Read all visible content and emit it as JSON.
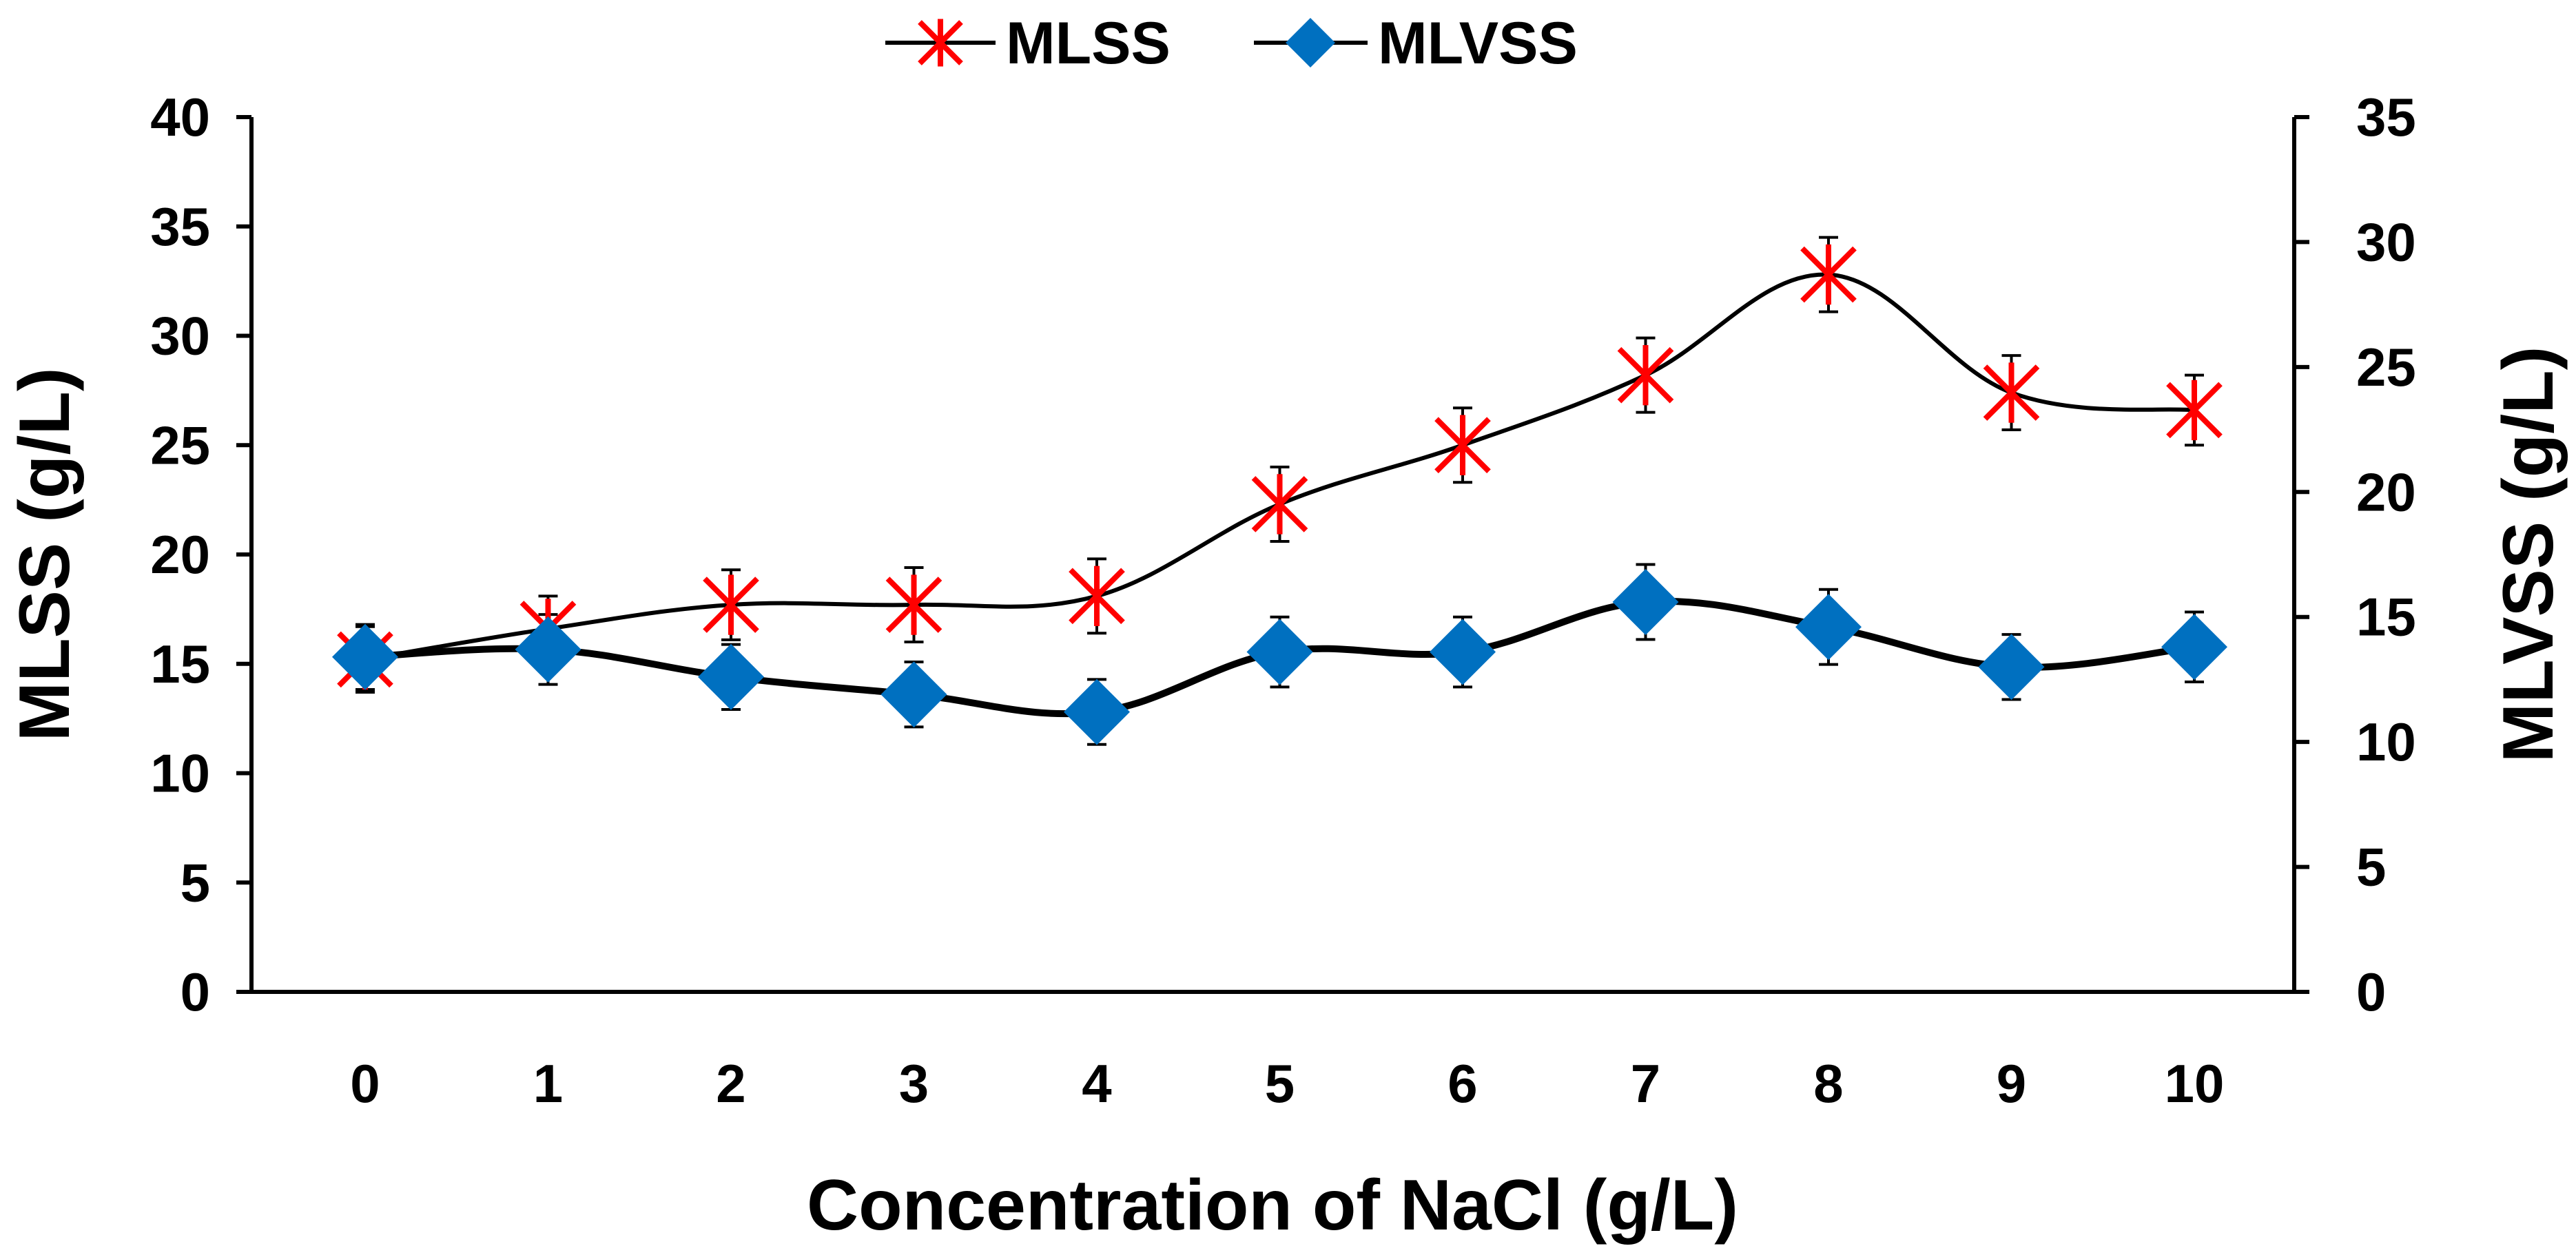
{
  "colors": {
    "mlss": "#ff0000",
    "mlvss": "#0070c0",
    "line": "#000000",
    "axis": "#000000"
  },
  "chart_data": {
    "type": "line",
    "x": [
      0,
      1,
      2,
      3,
      4,
      5,
      6,
      7,
      8,
      9,
      10
    ],
    "xlabel": "Concentration of NaCl (g/L)",
    "ylabel_left": "MLSS (g/L)",
    "ylabel_right": "MLVSS (g/L)",
    "ylim_left": [
      0,
      40
    ],
    "ylim_right": [
      0,
      35
    ],
    "yticks_left": [
      0,
      5,
      10,
      15,
      20,
      25,
      30,
      35,
      40
    ],
    "yticks_right": [
      0,
      5,
      10,
      15,
      20,
      25,
      30,
      35
    ],
    "grid": false,
    "legend_position": "top-center",
    "series": [
      {
        "name": "MLSS",
        "axis": "left",
        "marker": "asterisk",
        "color": "#ff0000",
        "values": [
          15.2,
          16.6,
          17.7,
          17.7,
          18.1,
          22.3,
          25.0,
          28.2,
          32.8,
          27.4,
          26.6
        ],
        "errors": [
          1.5,
          1.5,
          1.6,
          1.7,
          1.7,
          1.7,
          1.7,
          1.7,
          1.7,
          1.7,
          1.6
        ]
      },
      {
        "name": "MLVSS",
        "axis": "right",
        "marker": "diamond",
        "color": "#0070c0",
        "values": [
          13.4,
          13.7,
          12.6,
          11.9,
          11.2,
          13.6,
          13.6,
          15.6,
          14.6,
          13.0,
          13.8
        ],
        "errors": [
          1.3,
          1.4,
          1.3,
          1.3,
          1.3,
          1.4,
          1.4,
          1.5,
          1.5,
          1.3,
          1.4
        ]
      }
    ]
  }
}
